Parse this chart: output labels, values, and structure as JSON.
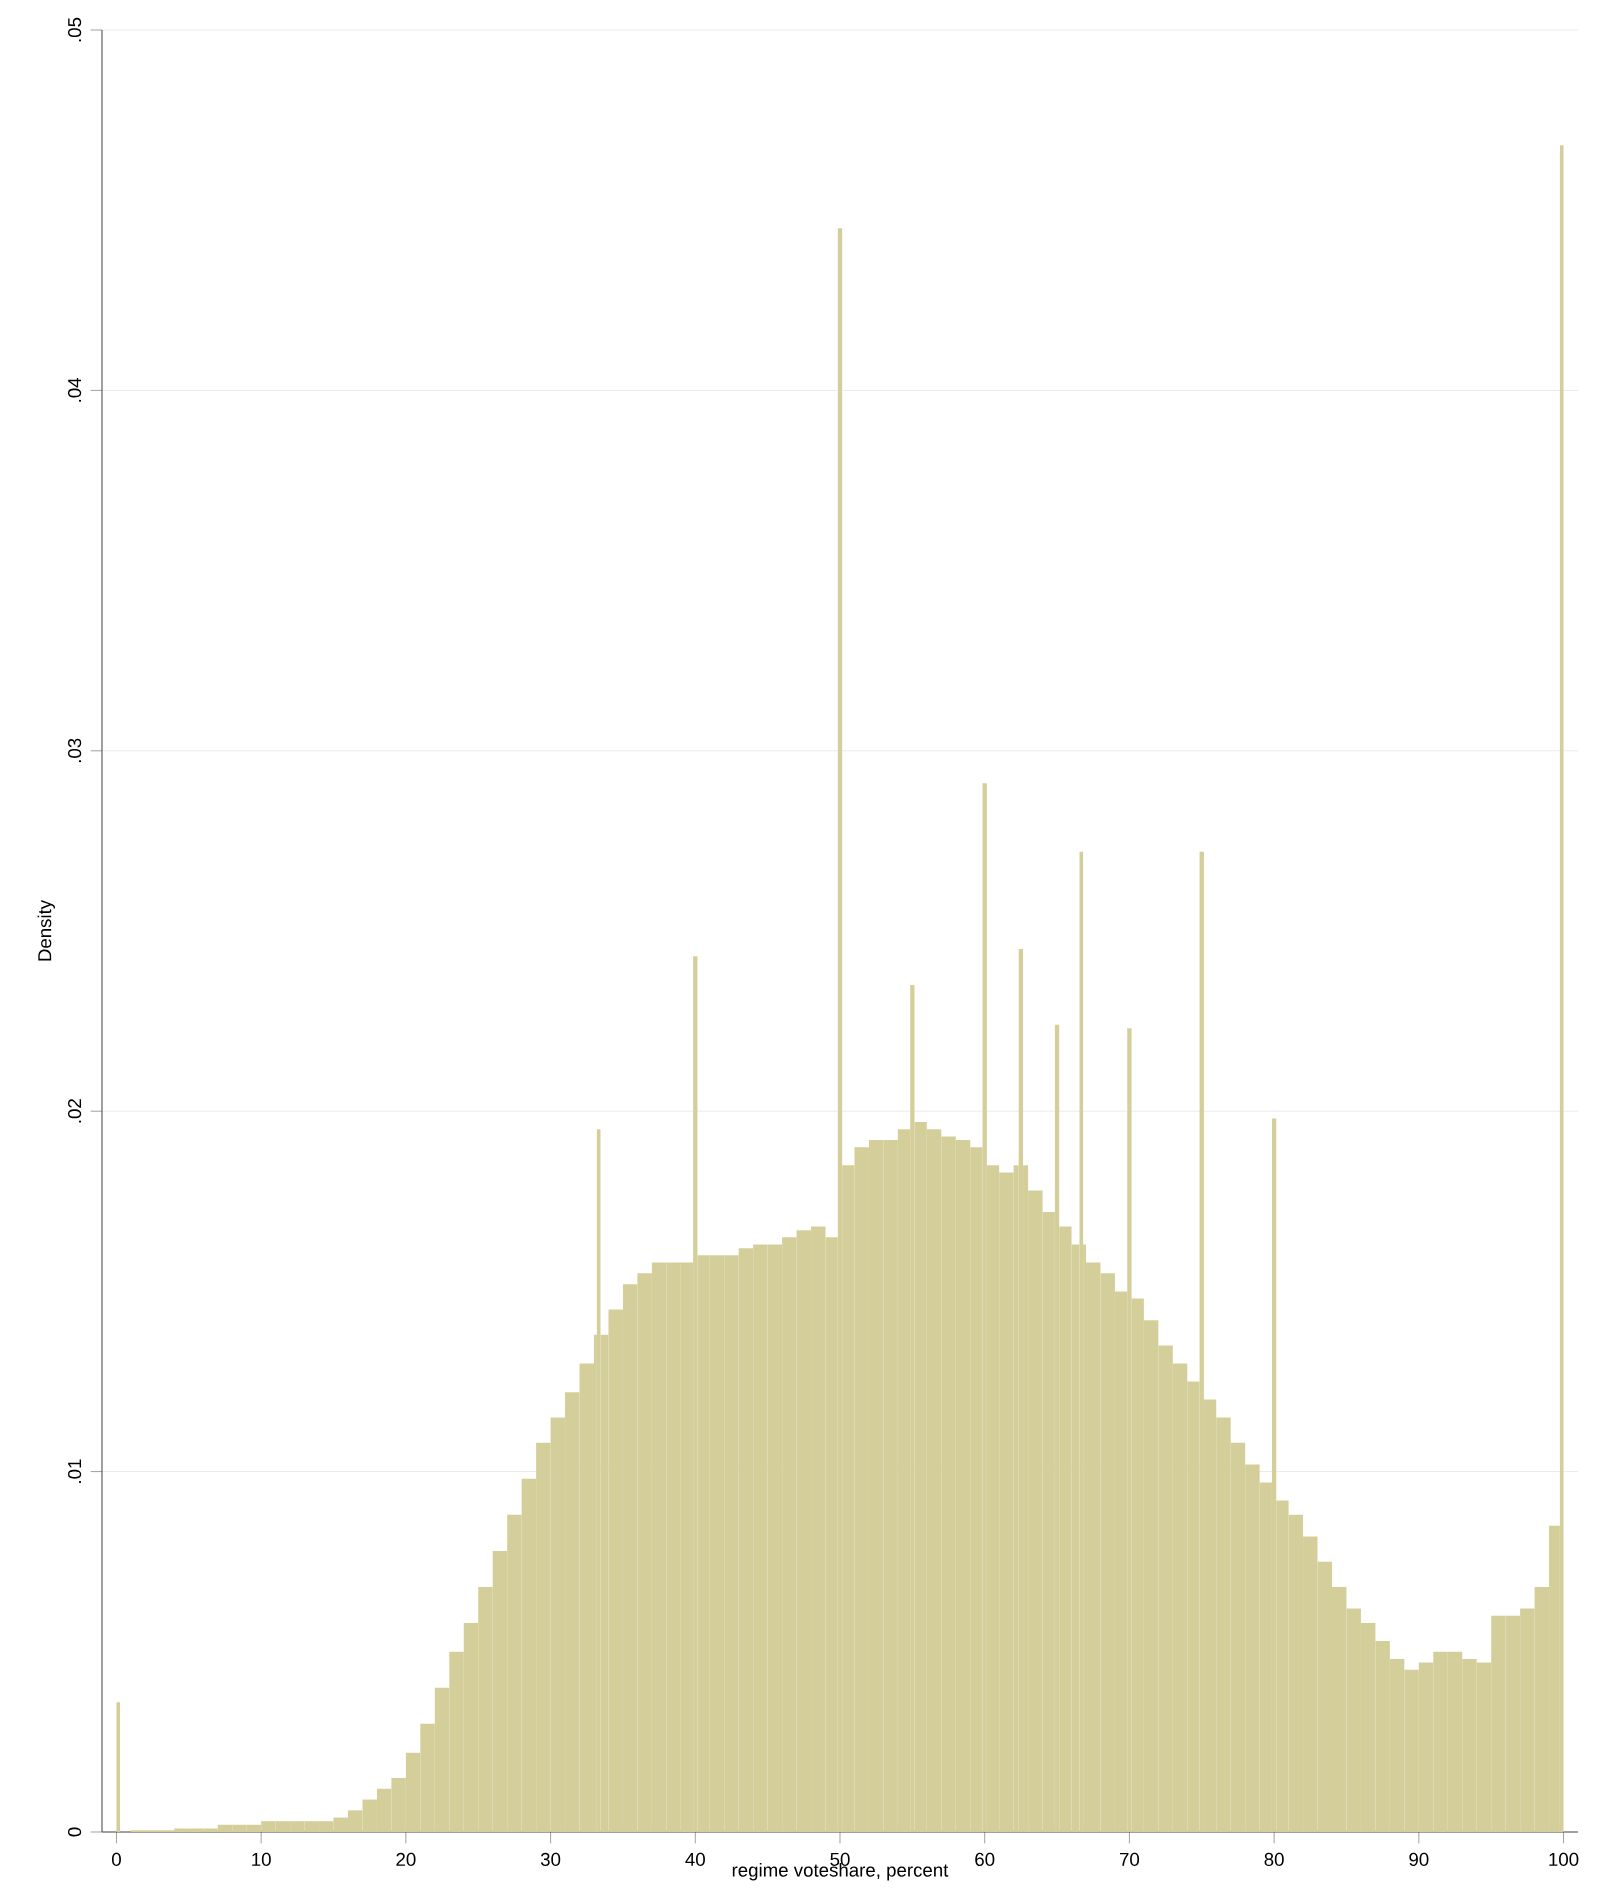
{
  "chart_data": {
    "type": "histogram",
    "xlabel": "regime voteshare, percent",
    "ylabel": "Density",
    "color": "#d4cf9a",
    "grid": "y",
    "xlim": [
      -1,
      101
    ],
    "ylim": [
      0,
      0.05
    ],
    "xticks": [
      0,
      10,
      20,
      30,
      40,
      50,
      60,
      70,
      80,
      90,
      100
    ],
    "yticks": [
      0,
      {
        "value": 0.01,
        "label": ".01"
      },
      {
        "value": 0.02,
        "label": ".02"
      },
      {
        "value": 0.03,
        "label": ".03"
      },
      {
        "value": 0.04,
        "label": ".04"
      },
      {
        "value": 0.05,
        "label": ".05"
      }
    ],
    "bins": [
      0,
      0.25,
      1,
      2,
      3,
      4,
      5,
      6,
      7,
      8,
      9,
      10,
      11,
      12,
      13,
      14,
      15,
      16,
      17,
      18,
      19,
      20,
      21,
      22,
      23,
      24,
      25,
      26,
      27,
      28,
      29,
      30,
      31,
      32,
      33,
      33.2,
      33.45,
      34,
      35,
      36,
      37,
      38,
      39,
      39.85,
      40.15,
      41,
      42,
      43,
      44,
      45,
      46,
      47,
      48,
      49,
      49.85,
      50.15,
      51,
      52,
      53,
      54,
      54.85,
      55.15,
      56,
      57,
      58,
      59,
      59.85,
      60.15,
      61,
      62,
      62.35,
      62.65,
      63,
      64,
      64.85,
      65.15,
      66,
      66.55,
      66.8,
      67,
      68,
      69,
      69.85,
      70.15,
      71,
      72,
      73,
      74,
      74.85,
      75.15,
      76,
      77,
      78,
      79,
      79.85,
      80.15,
      81,
      82,
      83,
      84,
      85,
      86,
      87,
      88,
      89,
      90,
      91,
      92,
      93,
      94,
      95,
      96,
      97,
      98,
      99,
      99.75,
      100
    ],
    "values": [
      0.0036,
      0,
      5e-05,
      5e-05,
      5e-05,
      0.0001,
      0.0001,
      0.0001,
      0.0002,
      0.0002,
      0.0002,
      0.0003,
      0.0003,
      0.0003,
      0.0003,
      0.0003,
      0.0004,
      0.0006,
      0.0009,
      0.0012,
      0.0015,
      0.0022,
      0.003,
      0.004,
      0.005,
      0.0058,
      0.0068,
      0.0078,
      0.0088,
      0.0098,
      0.0108,
      0.0115,
      0.0122,
      0.013,
      0.0138,
      0.0195,
      0.0138,
      0.0145,
      0.0152,
      0.0155,
      0.0158,
      0.0158,
      0.0158,
      0.0243,
      0.016,
      0.016,
      0.016,
      0.0162,
      0.0163,
      0.0163,
      0.0165,
      0.0167,
      0.0168,
      0.0165,
      0.0445,
      0.0185,
      0.019,
      0.0192,
      0.0192,
      0.0195,
      0.0235,
      0.0197,
      0.0195,
      0.0193,
      0.0192,
      0.019,
      0.0291,
      0.0185,
      0.0183,
      0.0185,
      0.0245,
      0.0185,
      0.0178,
      0.0172,
      0.0224,
      0.0168,
      0.0163,
      0.0272,
      0.0163,
      0.0158,
      0.0155,
      0.015,
      0.0223,
      0.0148,
      0.0142,
      0.0135,
      0.013,
      0.0125,
      0.0272,
      0.012,
      0.0115,
      0.0108,
      0.0102,
      0.0097,
      0.0198,
      0.0092,
      0.0088,
      0.0082,
      0.0075,
      0.0068,
      0.0062,
      0.0058,
      0.0053,
      0.0048,
      0.0045,
      0.0047,
      0.005,
      0.005,
      0.0048,
      0.0047,
      0.006,
      0.006,
      0.0062,
      0.0068,
      0.0085,
      0.0468
    ]
  }
}
